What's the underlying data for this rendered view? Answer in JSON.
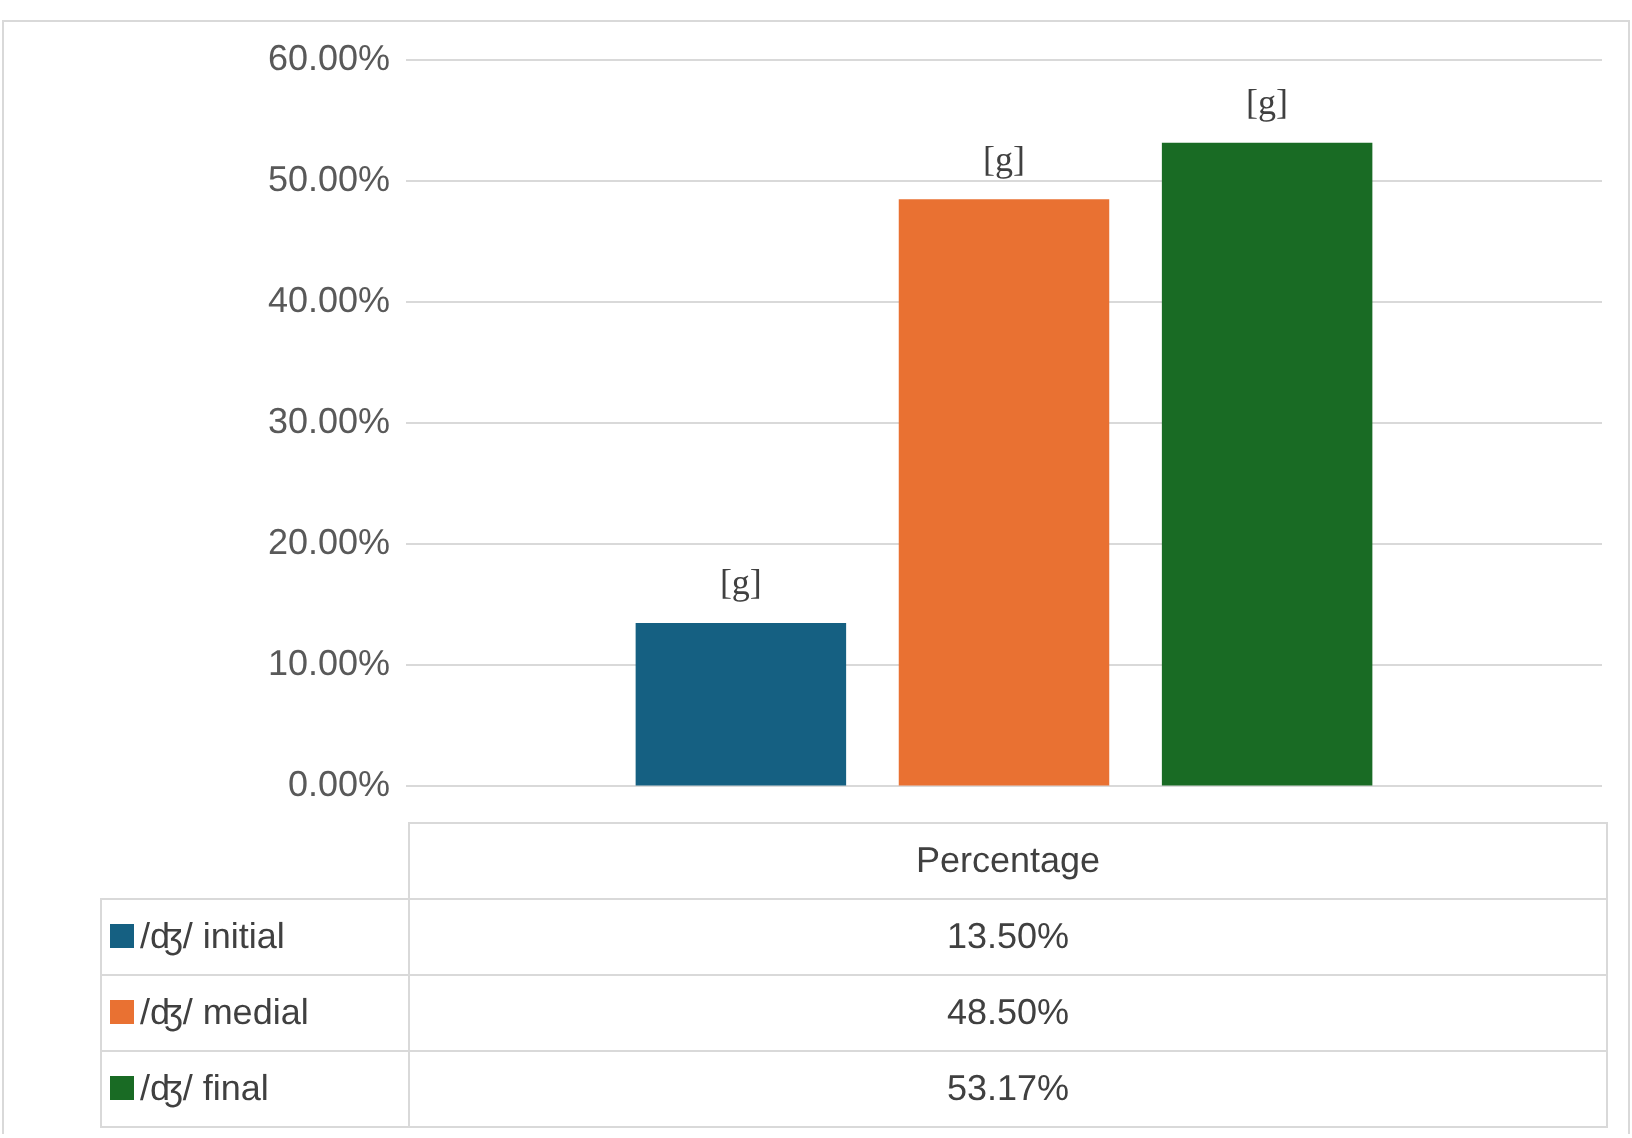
{
  "chart_data": {
    "type": "bar",
    "categories": [
      "Percentage"
    ],
    "series": [
      {
        "name": "/ʤ/ initial",
        "color": "#156082",
        "values": [
          13.5
        ],
        "value_labels": [
          "[g]"
        ]
      },
      {
        "name": "/ʤ/ medial",
        "color": "#e97132",
        "values": [
          48.5
        ],
        "value_labels": [
          "[g]"
        ]
      },
      {
        "name": "/ʤ/ final",
        "color": "#196b24",
        "values": [
          53.17
        ],
        "value_labels": [
          "[g]"
        ]
      }
    ],
    "ylim": [
      0,
      60
    ],
    "yticks": [
      {
        "value": 0,
        "label": "0.00%"
      },
      {
        "value": 10,
        "label": "10.00%"
      },
      {
        "value": 20,
        "label": "20.00%"
      },
      {
        "value": 30,
        "label": "30.00%"
      },
      {
        "value": 40,
        "label": "40.00%"
      },
      {
        "value": 50,
        "label": "50.00%"
      },
      {
        "value": 60,
        "label": "60.00%"
      }
    ],
    "grid": "y",
    "legend": "bottom",
    "annotations": [
      "13.50%",
      "48.50%",
      "53.17%"
    ]
  }
}
